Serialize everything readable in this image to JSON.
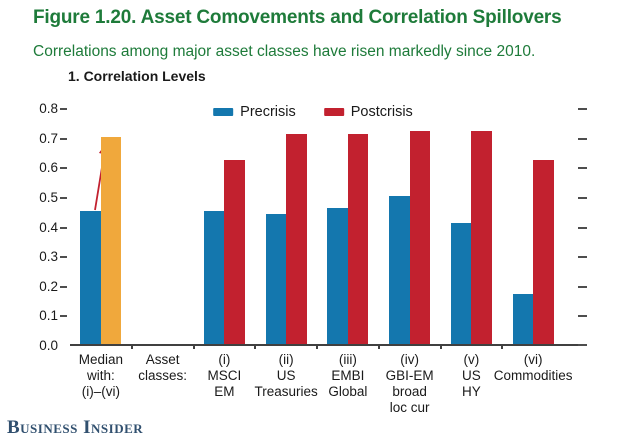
{
  "header": {
    "title": "Figure 1.20. Asset Comovements and Correlation Spillovers",
    "subtitle": "Correlations among major asset classes have risen markedly since 2010.",
    "title_color": "#1E7B3A"
  },
  "chart_data": {
    "type": "bar",
    "title": "1. Correlation Levels",
    "ylabel": "",
    "xlabel": "",
    "ylim": [
      0,
      0.8
    ],
    "yticks": [
      "0.0",
      "0.1",
      "0.2",
      "0.3",
      "0.4",
      "0.5",
      "0.6",
      "0.7",
      "0.8"
    ],
    "grid": false,
    "legend_position": "top-center",
    "categories": [
      [
        "Median",
        "with:",
        "(i)–(vi)"
      ],
      [
        "Asset",
        "classes:"
      ],
      [
        "(i)",
        "MSCI",
        "EM"
      ],
      [
        "(ii)",
        "US",
        "Treasuries"
      ],
      [
        "(iii)",
        "EMBI",
        "Global"
      ],
      [
        "(iv)",
        "GBI-EM",
        "broad",
        "loc cur"
      ],
      [
        "(v)",
        "US",
        "HY"
      ],
      [
        "(vi)",
        "Commodities"
      ]
    ],
    "series": [
      {
        "name": "Precrisis",
        "color": "#1477AE",
        "values": [
          0.45,
          null,
          0.45,
          0.44,
          0.46,
          0.5,
          0.41,
          0.17
        ]
      },
      {
        "name": "Postcrisis",
        "color": "#C2212F",
        "values": [
          0.7,
          null,
          0.62,
          0.71,
          0.71,
          0.72,
          0.72,
          0.62
        ]
      }
    ],
    "highlight": {
      "category_index": 0,
      "series_index": 1,
      "color": "#F0A83C",
      "note": "Median postcrisis bar shown in orange with red arrow rising from precrisis bar"
    },
    "annotation_arrow_color": "#C2212F",
    "axis_color": "#404040"
  },
  "footer": {
    "logo_text": "Business Insider",
    "logo_color": "#31506F"
  }
}
